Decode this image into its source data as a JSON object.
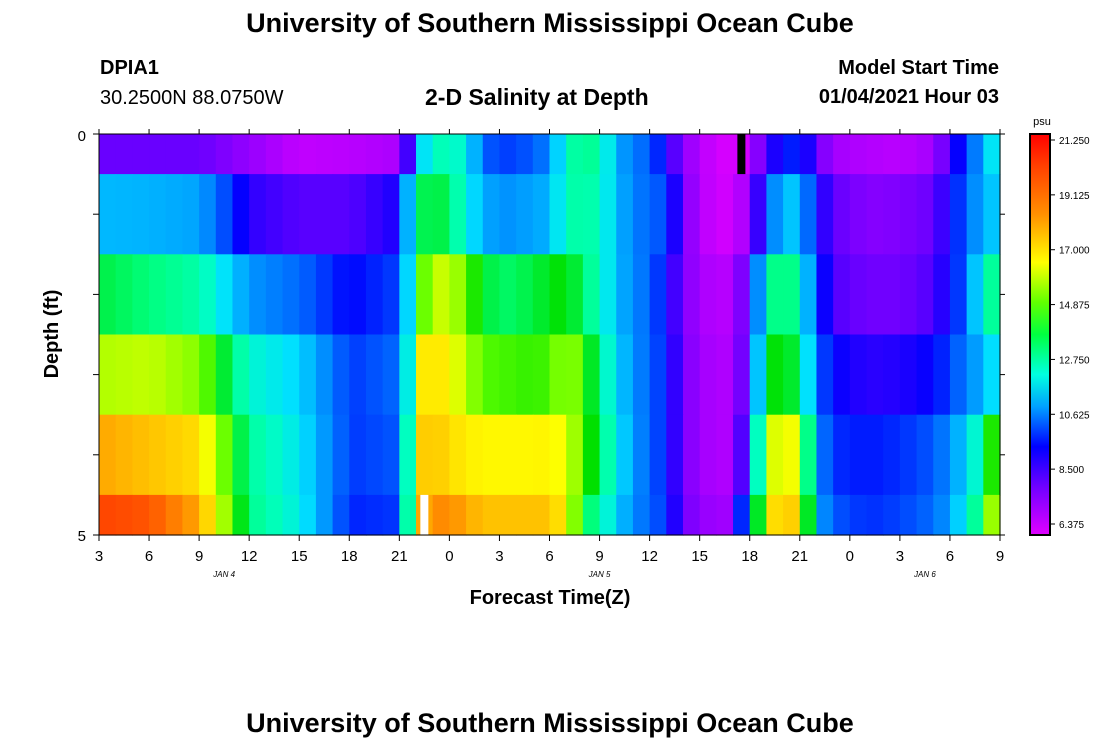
{
  "page": {
    "title_top": "University of Southern Mississippi Ocean Cube",
    "title_bottom": "University of Southern Mississippi Ocean Cube",
    "station_id": "DPIA1",
    "station_coords": "30.2500N 88.0750W",
    "chart_title": "2-D Salinity at Depth",
    "model_start_label": "Model Start Time",
    "model_start_value": "01/04/2021 Hour 03"
  },
  "colors": {
    "ramp": [
      "#e000ff",
      "#a000ff",
      "#6000ff",
      "#0000ff",
      "#0060ff",
      "#00a0ff",
      "#00e0ff",
      "#00ffc0",
      "#00ff80",
      "#00e000",
      "#60ff00",
      "#b0ff00",
      "#ffff00",
      "#ffd000",
      "#ffa000",
      "#ff7000",
      "#ff4000",
      "#ff0000"
    ]
  },
  "chart_data": {
    "type": "heatmap",
    "title": "2-D Salinity at Depth",
    "xlabel": "Forecast Time(Z)",
    "ylabel": "Depth (ft)",
    "colorbar_unit": "psu",
    "colorbar_ticks": [
      "21.250",
      "19.125",
      "17.000",
      "14.875",
      "12.750",
      "10.625",
      "8.500",
      "6.375"
    ],
    "value_range": [
      6.375,
      21.25
    ],
    "ylim": [
      0,
      5
    ],
    "y_tick_labels": [
      "0",
      "5"
    ],
    "depth_levels": [
      0.25,
      1.25,
      2.0,
      3.0,
      4.0,
      4.75
    ],
    "x_tick_labels": [
      "3",
      "6",
      "9",
      "12",
      "15",
      "18",
      "21",
      "0",
      "3",
      "6",
      "9",
      "12",
      "15",
      "18",
      "21",
      "0",
      "3",
      "6",
      "9"
    ],
    "date_labels": [
      {
        "text": "JAN 4",
        "tick": 2.5
      },
      {
        "text": "JAN 5",
        "tick": 10.0
      },
      {
        "text": "JAN 6",
        "tick": 16.5
      }
    ],
    "hours": [
      0,
      6,
      12,
      18,
      24,
      30,
      36,
      42,
      48,
      54
    ],
    "rows": [
      {
        "depth": 0.25,
        "values": [
          [
            0,
            8.0
          ],
          [
            3,
            8.0
          ],
          [
            6,
            8.0
          ],
          [
            9,
            7.4
          ],
          [
            12,
            6.8
          ],
          [
            15,
            6.9
          ],
          [
            18,
            7.1
          ],
          [
            18.5,
            8.4
          ],
          [
            19,
            11.0
          ],
          [
            20,
            12.5
          ],
          [
            21,
            12.7
          ],
          [
            22,
            12.0
          ],
          [
            23,
            10.0
          ],
          [
            24,
            9.5
          ],
          [
            26,
            9.8
          ],
          [
            27,
            10.4
          ],
          [
            28,
            12.5
          ],
          [
            29,
            13.3
          ],
          [
            30,
            12.8
          ],
          [
            31,
            11.0
          ],
          [
            32,
            10.2
          ],
          [
            33,
            9.9
          ],
          [
            34,
            8.8
          ],
          [
            35,
            7.6
          ],
          [
            36,
            6.9
          ],
          [
            38,
            6.4
          ],
          [
            39,
            6.7
          ],
          [
            40,
            8.5
          ],
          [
            41,
            9.0
          ],
          [
            42,
            9.5
          ],
          [
            43,
            8.0
          ],
          [
            44,
            7.2
          ],
          [
            46,
            7.0
          ],
          [
            48,
            6.9
          ],
          [
            50,
            7.2
          ],
          [
            51,
            8.4
          ],
          [
            52,
            9.5
          ],
          [
            53,
            11.0
          ],
          [
            54,
            12.5
          ]
        ]
      },
      {
        "depth": 1.25,
        "values": [
          [
            0,
            11.1
          ],
          [
            3,
            11.0
          ],
          [
            6,
            10.8
          ],
          [
            9,
            8.6
          ],
          [
            12,
            8.2
          ],
          [
            15,
            8.2
          ],
          [
            18,
            8.8
          ],
          [
            18.5,
            11.0
          ],
          [
            19,
            13.4
          ],
          [
            20,
            14.0
          ],
          [
            21,
            13.5
          ],
          [
            22,
            12.0
          ],
          [
            23,
            11.0
          ],
          [
            24,
            10.5
          ],
          [
            26,
            10.8
          ],
          [
            27,
            11.0
          ],
          [
            28,
            12.6
          ],
          [
            29,
            13.0
          ],
          [
            30,
            12.5
          ],
          [
            31,
            11.2
          ],
          [
            32,
            10.3
          ],
          [
            33,
            10.0
          ],
          [
            34,
            9.6
          ],
          [
            35,
            7.9
          ],
          [
            36,
            6.9
          ],
          [
            38,
            6.5
          ],
          [
            39,
            7.5
          ],
          [
            40,
            9.5
          ],
          [
            41,
            11.5
          ],
          [
            42,
            11.0
          ],
          [
            43,
            9.0
          ],
          [
            44,
            8.1
          ],
          [
            46,
            7.6
          ],
          [
            48,
            7.7
          ],
          [
            50,
            8.0
          ],
          [
            51,
            8.9
          ],
          [
            52,
            10.0
          ],
          [
            53,
            11.0
          ],
          [
            54,
            11.5
          ]
        ]
      },
      {
        "depth": 2.0,
        "values": [
          [
            0,
            13.8
          ],
          [
            3,
            13.4
          ],
          [
            6,
            12.8
          ],
          [
            9,
            10.6
          ],
          [
            12,
            10.0
          ],
          [
            15,
            9.0
          ],
          [
            18,
            9.6
          ],
          [
            18.5,
            11.5
          ],
          [
            19,
            14.5
          ],
          [
            20,
            16.0
          ],
          [
            21,
            16.5
          ],
          [
            22,
            15.0
          ],
          [
            23,
            14.0
          ],
          [
            24,
            13.5
          ],
          [
            26,
            13.8
          ],
          [
            27,
            14.1
          ],
          [
            28,
            14.3
          ],
          [
            29,
            13.5
          ],
          [
            30,
            12.5
          ],
          [
            31,
            11.2
          ],
          [
            32,
            10.4
          ],
          [
            33,
            10.0
          ],
          [
            34,
            9.0
          ],
          [
            35,
            7.8
          ],
          [
            36,
            7.1
          ],
          [
            38,
            6.9
          ],
          [
            39,
            8.5
          ],
          [
            40,
            12.5
          ],
          [
            41,
            14.0
          ],
          [
            42,
            12.5
          ],
          [
            43,
            9.5
          ],
          [
            44,
            8.3
          ],
          [
            46,
            7.9
          ],
          [
            48,
            7.9
          ],
          [
            50,
            8.3
          ],
          [
            51,
            9.0
          ],
          [
            52,
            10.0
          ],
          [
            53,
            12.5
          ],
          [
            54,
            13.5
          ]
        ]
      },
      {
        "depth": 3.0,
        "values": [
          [
            0,
            16.0
          ],
          [
            3,
            16.2
          ],
          [
            6,
            15.5
          ],
          [
            9,
            12.3
          ],
          [
            12,
            11.5
          ],
          [
            15,
            9.5
          ],
          [
            18,
            10.0
          ],
          [
            18.5,
            12.0
          ],
          [
            19,
            17.0
          ],
          [
            20,
            17.5
          ],
          [
            21,
            17.0
          ],
          [
            22,
            16.0
          ],
          [
            23,
            15.0
          ],
          [
            24,
            14.9
          ],
          [
            26,
            14.7
          ],
          [
            27,
            14.9
          ],
          [
            28,
            15.8
          ],
          [
            29,
            15.0
          ],
          [
            30,
            13.0
          ],
          [
            31,
            11.6
          ],
          [
            32,
            10.5
          ],
          [
            33,
            10.0
          ],
          [
            34,
            9.2
          ],
          [
            35,
            7.9
          ],
          [
            36,
            7.2
          ],
          [
            38,
            7.0
          ],
          [
            39,
            8.7
          ],
          [
            40,
            13.8
          ],
          [
            41,
            14.6
          ],
          [
            42,
            13.3
          ],
          [
            43,
            10.0
          ],
          [
            44,
            9.0
          ],
          [
            46,
            8.6
          ],
          [
            48,
            8.7
          ],
          [
            50,
            9.0
          ],
          [
            51,
            9.6
          ],
          [
            52,
            10.2
          ],
          [
            53,
            11.2
          ],
          [
            54,
            12.0
          ]
        ]
      },
      {
        "depth": 4.0,
        "values": [
          [
            0,
            18.5
          ],
          [
            3,
            18.0
          ],
          [
            6,
            17.5
          ],
          [
            9,
            13.0
          ],
          [
            12,
            11.8
          ],
          [
            15,
            9.5
          ],
          [
            18,
            9.8
          ],
          [
            18.5,
            12.5
          ],
          [
            19,
            17.6
          ],
          [
            20,
            18.0
          ],
          [
            21,
            17.5
          ],
          [
            22,
            17.2
          ],
          [
            23,
            17.0
          ],
          [
            24,
            17.0
          ],
          [
            26,
            17.0
          ],
          [
            27,
            17.1
          ],
          [
            28,
            16.6
          ],
          [
            29,
            15.0
          ],
          [
            30,
            13.5
          ],
          [
            31,
            12.0
          ],
          [
            32,
            10.6
          ],
          [
            33,
            10.0
          ],
          [
            34,
            9.2
          ],
          [
            35,
            7.9
          ],
          [
            36,
            7.2
          ],
          [
            38,
            7.0
          ],
          [
            39,
            9.5
          ],
          [
            40,
            15.5
          ],
          [
            41,
            17.5
          ],
          [
            42,
            16.0
          ],
          [
            43,
            10.5
          ],
          [
            44,
            9.4
          ],
          [
            46,
            9.2
          ],
          [
            48,
            9.4
          ],
          [
            50,
            9.8
          ],
          [
            51,
            10.5
          ],
          [
            52,
            11.5
          ],
          [
            53,
            13.0
          ],
          [
            54,
            16.0
          ]
        ]
      },
      {
        "depth": 4.75,
        "values": [
          [
            0,
            20.3
          ],
          [
            3,
            20.0
          ],
          [
            6,
            18.5
          ],
          [
            9,
            13.2
          ],
          [
            12,
            12.0
          ],
          [
            15,
            9.3
          ],
          [
            18,
            9.5
          ],
          [
            18.5,
            12.8
          ],
          [
            19,
            18.0
          ],
          [
            20,
            19.0
          ],
          [
            21,
            19.0
          ],
          [
            22,
            18.5
          ],
          [
            23,
            18.0
          ],
          [
            24,
            18.0
          ],
          [
            26,
            18.0
          ],
          [
            27,
            18.0
          ],
          [
            28,
            17.0
          ],
          [
            29,
            14.0
          ],
          [
            30,
            12.8
          ],
          [
            31,
            11.5
          ],
          [
            32,
            10.4
          ],
          [
            33,
            10.0
          ],
          [
            34,
            9.4
          ],
          [
            35,
            8.0
          ],
          [
            36,
            7.4
          ],
          [
            38,
            7.2
          ],
          [
            39,
            11.5
          ],
          [
            40,
            16.5
          ],
          [
            41,
            18.5
          ],
          [
            42,
            17.0
          ],
          [
            43,
            11.0
          ],
          [
            44,
            9.8
          ],
          [
            46,
            9.4
          ],
          [
            48,
            9.6
          ],
          [
            50,
            10.0
          ],
          [
            51,
            10.8
          ],
          [
            52,
            12.0
          ],
          [
            53,
            14.0
          ],
          [
            54,
            17.5
          ]
        ]
      }
    ],
    "markers": [
      {
        "color": "#000000",
        "hour": 38.5,
        "depth_from": 0,
        "depth_to": 0.5
      },
      {
        "color": "#ffffff",
        "hour": 19.5,
        "depth_from": 4.5,
        "depth_to": 5
      }
    ]
  }
}
